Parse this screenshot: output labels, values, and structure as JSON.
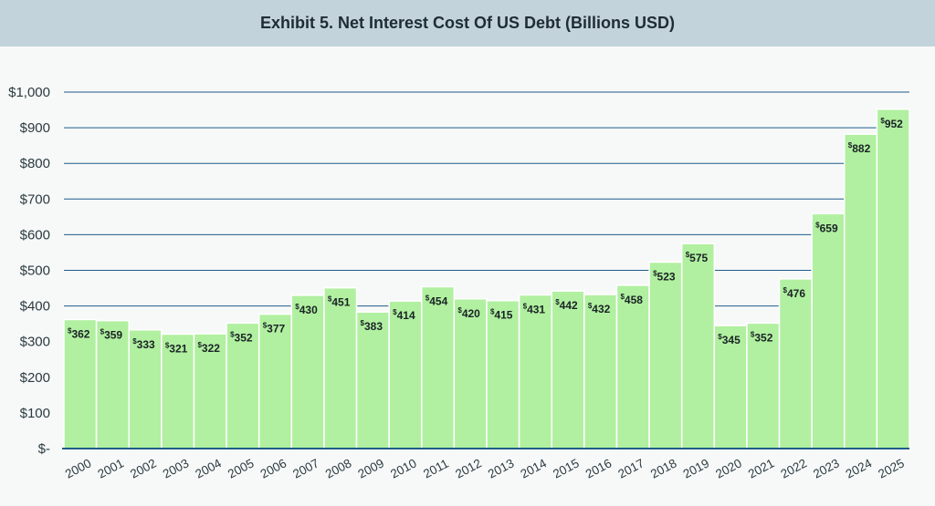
{
  "header": {
    "title": "Exhibit 5. Net Interest Cost Of US Debt (Billions USD)"
  },
  "colors": {
    "bar_fill": "#b1f0a0",
    "bar_stroke": "#ffffff",
    "gridline": "#1f5b8a",
    "title_band": "#c2d3dc",
    "background": "#f7f9f8"
  },
  "chart_data": {
    "type": "bar",
    "title": "Exhibit 5. Net Interest Cost Of US Debt (Billions USD)",
    "xlabel": "",
    "ylabel": "",
    "ylim": [
      0,
      1000
    ],
    "grid": true,
    "yticks": [
      0,
      100,
      200,
      300,
      400,
      500,
      600,
      700,
      800,
      900,
      1000
    ],
    "ytick_labels": [
      "$-",
      "$100",
      "$200",
      "$300",
      "$400",
      "$500",
      "$600",
      "$700",
      "$800",
      "$900",
      "$1,000"
    ],
    "categories": [
      "2000",
      "2001",
      "2002",
      "2003",
      "2004",
      "2005",
      "2006",
      "2007",
      "2008",
      "2009",
      "2010",
      "2011",
      "2012",
      "2013",
      "2014",
      "2015",
      "2016",
      "2017",
      "2018",
      "2019",
      "2020",
      "2021",
      "2022",
      "2023",
      "2024",
      "2025"
    ],
    "values": [
      362,
      359,
      333,
      321,
      322,
      352,
      377,
      430,
      451,
      383,
      414,
      454,
      420,
      415,
      431,
      442,
      432,
      458,
      523,
      575,
      345,
      352,
      476,
      659,
      882,
      952
    ],
    "data_label_prefix": "$"
  }
}
